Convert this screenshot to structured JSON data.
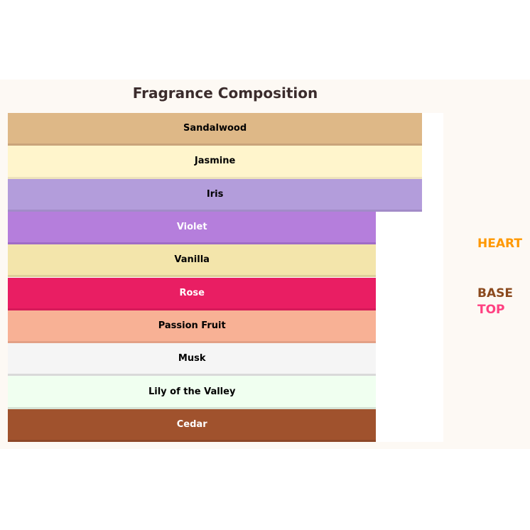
{
  "chart_data": {
    "type": "bar",
    "orientation": "horizontal",
    "title": "Fragrance Composition",
    "xlim": [
      0,
      9.46
    ],
    "grid": false,
    "categories": [
      "Sandalwood",
      "Jasmine",
      "Iris",
      "Violet",
      "Vanilla",
      "Rose",
      "Passion Fruit",
      "Musk",
      "Lily of the Valley",
      "Cedar"
    ],
    "values": [
      9,
      9,
      9,
      8,
      8,
      8,
      8,
      8,
      8,
      8
    ],
    "colors": [
      "#deb887",
      "#fff5cc",
      "#b39ddb",
      "#b57edc",
      "#f3e5ab",
      "#e91e63",
      "#f8b195",
      "#f5f5f5",
      "#f0fff0",
      "#a0522d"
    ],
    "border_colors": [
      "#c9a47a",
      "#eee3bb",
      "#a28bc8",
      "#a06cc6",
      "#ddcf98",
      "#d61a59",
      "#e3a086",
      "#d9d9d9",
      "#d6e3d6",
      "#8d4727"
    ],
    "label_colors": [
      "#000",
      "#000",
      "#000",
      "#fff",
      "#000",
      "#fff",
      "#000",
      "#000",
      "#000",
      "#fff"
    ],
    "legend": {
      "placement": "right",
      "entries": [
        {
          "label": "HEART",
          "color": "#ff9800"
        },
        {
          "label": "BASE",
          "color": "#8b4a1e"
        },
        {
          "label": "TOP",
          "color": "#ff4081"
        }
      ]
    }
  }
}
